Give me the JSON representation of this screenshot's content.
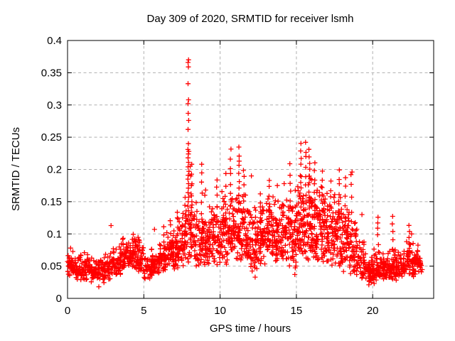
{
  "chart_data": {
    "type": "scatter",
    "title": "Day 309 of 2020, SRMTID for receiver lsmh",
    "xlabel": "GPS time / hours",
    "ylabel": "SRMTID / TECUs",
    "xlim": [
      0,
      24
    ],
    "ylim": [
      0,
      0.4
    ],
    "x_ticks": [
      0,
      5,
      10,
      15,
      20
    ],
    "x_tick_labels": [
      "0",
      "5",
      "10",
      "15",
      "20"
    ],
    "y_ticks": [
      0,
      0.05,
      0.1,
      0.15,
      0.2,
      0.25,
      0.3,
      0.35,
      0.4
    ],
    "y_tick_labels": [
      "0",
      "0.05",
      "0.1",
      "0.15",
      "0.2",
      "0.25",
      "0.3",
      "0.35",
      "0.4"
    ],
    "grid": true,
    "legend": "none",
    "marker": {
      "shape": "plus",
      "color": "#ff0000",
      "size": 7,
      "stroke_width": 1.3
    },
    "grid_color": "#b0b0b0",
    "axis_color": "#000000",
    "background_color": "#ffffff",
    "seed": 42,
    "band_profile": [
      [
        0.0,
        0.5,
        40,
        0.033,
        0.076
      ],
      [
        0.5,
        1.0,
        42,
        0.028,
        0.072
      ],
      [
        1.0,
        1.5,
        42,
        0.028,
        0.074
      ],
      [
        1.5,
        2.0,
        42,
        0.025,
        0.068
      ],
      [
        2.0,
        2.5,
        42,
        0.024,
        0.07
      ],
      [
        2.5,
        3.0,
        40,
        0.028,
        0.078
      ],
      [
        3.0,
        3.5,
        42,
        0.032,
        0.086
      ],
      [
        3.5,
        4.0,
        44,
        0.04,
        0.096
      ],
      [
        4.0,
        4.5,
        46,
        0.044,
        0.1
      ],
      [
        4.5,
        5.0,
        44,
        0.038,
        0.094
      ],
      [
        5.0,
        5.5,
        38,
        0.03,
        0.074
      ],
      [
        5.5,
        6.0,
        40,
        0.034,
        0.084
      ],
      [
        6.0,
        6.5,
        44,
        0.04,
        0.1
      ],
      [
        6.5,
        7.0,
        44,
        0.046,
        0.114
      ],
      [
        7.0,
        7.5,
        48,
        0.044,
        0.125
      ],
      [
        7.5,
        8.0,
        40,
        0.048,
        0.148
      ],
      [
        8.0,
        8.5,
        46,
        0.048,
        0.158
      ],
      [
        8.5,
        9.0,
        46,
        0.05,
        0.15
      ],
      [
        9.0,
        9.5,
        48,
        0.048,
        0.142
      ],
      [
        9.5,
        10.0,
        48,
        0.05,
        0.158
      ],
      [
        10.0,
        10.5,
        50,
        0.052,
        0.168
      ],
      [
        10.5,
        11.0,
        50,
        0.054,
        0.165
      ],
      [
        11.0,
        11.5,
        52,
        0.056,
        0.182
      ],
      [
        11.5,
        12.0,
        50,
        0.052,
        0.168
      ],
      [
        12.0,
        12.5,
        50,
        0.038,
        0.15
      ],
      [
        12.5,
        13.0,
        52,
        0.05,
        0.158
      ],
      [
        13.0,
        13.5,
        54,
        0.056,
        0.168
      ],
      [
        13.5,
        14.0,
        54,
        0.056,
        0.16
      ],
      [
        14.0,
        14.5,
        54,
        0.052,
        0.164
      ],
      [
        14.5,
        15.0,
        54,
        0.044,
        0.178
      ],
      [
        15.0,
        15.5,
        56,
        0.056,
        0.196
      ],
      [
        15.5,
        16.0,
        56,
        0.058,
        0.198
      ],
      [
        16.0,
        16.5,
        56,
        0.056,
        0.188
      ],
      [
        16.5,
        17.0,
        54,
        0.05,
        0.178
      ],
      [
        17.0,
        17.5,
        54,
        0.048,
        0.168
      ],
      [
        17.5,
        18.0,
        52,
        0.044,
        0.172
      ],
      [
        18.0,
        18.5,
        50,
        0.04,
        0.162
      ],
      [
        18.5,
        19.0,
        48,
        0.035,
        0.138
      ],
      [
        19.0,
        19.5,
        44,
        0.028,
        0.105
      ],
      [
        19.5,
        20.0,
        44,
        0.024,
        0.082
      ],
      [
        20.0,
        20.5,
        44,
        0.026,
        0.08
      ],
      [
        20.5,
        21.0,
        44,
        0.028,
        0.076
      ],
      [
        21.0,
        21.5,
        44,
        0.028,
        0.082
      ],
      [
        21.5,
        22.0,
        44,
        0.028,
        0.08
      ],
      [
        22.0,
        22.5,
        44,
        0.032,
        0.092
      ],
      [
        22.5,
        23.0,
        44,
        0.032,
        0.086
      ],
      [
        23.0,
        23.25,
        20,
        0.036,
        0.078
      ]
    ],
    "streaks": [
      [
        4.3,
        0.065,
        0.103,
        6
      ],
      [
        4.65,
        0.06,
        0.098,
        5
      ],
      [
        6.3,
        0.07,
        0.11,
        5
      ],
      [
        6.75,
        0.078,
        0.122,
        5
      ],
      [
        7.2,
        0.085,
        0.13,
        6
      ],
      [
        7.7,
        0.095,
        0.155,
        6
      ],
      [
        8.15,
        0.12,
        0.205,
        7
      ],
      [
        8.8,
        0.105,
        0.21,
        8
      ],
      [
        9.8,
        0.115,
        0.185,
        6
      ],
      [
        10.35,
        0.12,
        0.19,
        6
      ],
      [
        10.7,
        0.14,
        0.23,
        8
      ],
      [
        11.25,
        0.15,
        0.235,
        9
      ],
      [
        11.55,
        0.125,
        0.2,
        7
      ],
      [
        12.65,
        0.105,
        0.163,
        6
      ],
      [
        13.2,
        0.115,
        0.185,
        7
      ],
      [
        14.6,
        0.125,
        0.205,
        7
      ],
      [
        15.3,
        0.145,
        0.24,
        9
      ],
      [
        15.62,
        0.15,
        0.243,
        8
      ],
      [
        15.85,
        0.145,
        0.232,
        9
      ],
      [
        16.2,
        0.13,
        0.21,
        8
      ],
      [
        16.7,
        0.12,
        0.2,
        7
      ],
      [
        17.25,
        0.11,
        0.185,
        6
      ],
      [
        17.8,
        0.125,
        0.2,
        7
      ],
      [
        18.2,
        0.115,
        0.19,
        6
      ],
      [
        18.6,
        0.1,
        0.192,
        6
      ],
      [
        20.35,
        0.085,
        0.128,
        5
      ],
      [
        21.3,
        0.078,
        0.127,
        5
      ],
      [
        22.4,
        0.075,
        0.113,
        5
      ]
    ],
    "spike_points": [
      [
        7.93,
        0.37
      ],
      [
        7.9,
        0.366
      ],
      [
        7.92,
        0.359
      ],
      [
        7.9,
        0.333
      ],
      [
        7.93,
        0.308
      ],
      [
        7.9,
        0.302
      ],
      [
        7.91,
        0.287
      ],
      [
        7.94,
        0.276
      ],
      [
        7.9,
        0.262
      ],
      [
        7.92,
        0.24
      ],
      [
        7.89,
        0.231
      ],
      [
        7.95,
        0.228
      ],
      [
        7.92,
        0.224
      ],
      [
        7.9,
        0.218
      ],
      [
        7.93,
        0.211
      ],
      [
        7.9,
        0.204
      ],
      [
        7.96,
        0.197
      ],
      [
        7.91,
        0.191
      ],
      [
        7.89,
        0.185
      ],
      [
        7.93,
        0.178
      ],
      [
        7.92,
        0.171
      ],
      [
        7.9,
        0.164
      ],
      [
        7.94,
        0.157
      ],
      [
        7.91,
        0.15
      ],
      [
        7.89,
        0.143
      ],
      [
        7.92,
        0.136
      ],
      [
        7.95,
        0.129
      ],
      [
        7.9,
        0.122
      ],
      [
        7.93,
        0.116
      ],
      [
        8.05,
        0.205
      ],
      [
        8.08,
        0.19
      ],
      [
        8.12,
        0.175
      ],
      [
        8.1,
        0.162
      ],
      [
        8.15,
        0.15
      ]
    ],
    "outlier_points": [
      [
        2.05,
        0.018
      ],
      [
        12.3,
        0.033
      ],
      [
        14.9,
        0.037
      ],
      [
        19.75,
        0.021
      ],
      [
        20.1,
        0.023
      ],
      [
        2.85,
        0.113
      ],
      [
        5.7,
        0.107
      ],
      [
        9.3,
        0.142
      ],
      [
        12.05,
        0.19
      ],
      [
        13.75,
        0.175
      ],
      [
        14.2,
        0.178
      ],
      [
        19.3,
        0.13
      ],
      [
        22.55,
        0.1
      ],
      [
        0.2,
        0.078
      ],
      [
        18.65,
        0.196
      ],
      [
        9.05,
        0.168
      ],
      [
        9.0,
        0.16
      ]
    ]
  }
}
